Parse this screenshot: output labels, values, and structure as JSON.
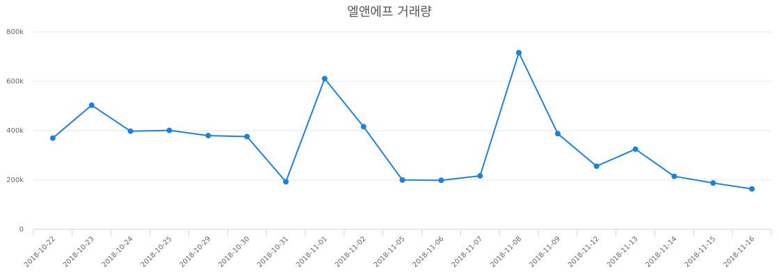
{
  "chart_data": {
    "type": "line",
    "title": "엘앤에프 거래량",
    "xlabel": "",
    "ylabel": "",
    "categories": [
      "2018-10-22",
      "2018-10-23",
      "2018-10-24",
      "2018-10-25",
      "2018-10-29",
      "2018-10-30",
      "2018-10-31",
      "2018-11-01",
      "2018-11-02",
      "2018-11-05",
      "2018-11-06",
      "2018-11-07",
      "2018-11-08",
      "2018-11-09",
      "2018-11-12",
      "2018-11-13",
      "2018-11-14",
      "2018-11-15",
      "2018-11-16"
    ],
    "series": [
      {
        "values": [
          370000,
          503000,
          398000,
          401000,
          380000,
          376000,
          193000,
          611000,
          416000,
          200000,
          199000,
          217000,
          716000,
          388000,
          256000,
          325000,
          215000,
          188000,
          164000
        ],
        "color": "#1f7fd9"
      }
    ],
    "ylim": [
      0,
      800000
    ],
    "yticks": [
      0,
      200000,
      400000,
      600000,
      800000
    ],
    "ytick_labels": [
      "0",
      "200k",
      "400k",
      "600k",
      "800k"
    ],
    "grid": true,
    "legend": "none"
  }
}
